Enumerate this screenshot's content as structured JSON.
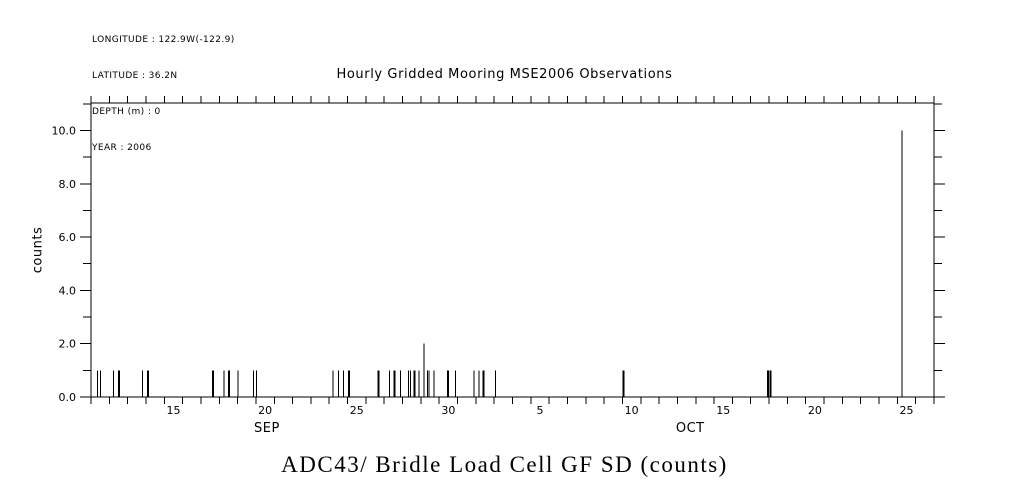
{
  "colors": {
    "fg": "#000000",
    "bg": "#ffffff"
  },
  "header_info": {
    "lines": [
      "LONGITUDE : 122.9W(-122.9)",
      "LATITUDE : 36.2N",
      "DEPTH (m) : 0",
      "YEAR : 2006"
    ]
  },
  "chart_data": {
    "type": "bar",
    "title": "Hourly Gridded Mooring MSE2006 Observations",
    "bottom_title": "ADC43/ Bridle Load Cell GF SD (counts)",
    "ylabel": "counts",
    "ylim": [
      0,
      11.03
    ],
    "y_major_ticks": [
      {
        "value": 0,
        "label": "0.0"
      },
      {
        "value": 2,
        "label": "2.0"
      },
      {
        "value": 4,
        "label": "4.0"
      },
      {
        "value": 6,
        "label": "6.0"
      },
      {
        "value": 8,
        "label": "8.0"
      },
      {
        "value": 10,
        "label": "10.0"
      }
    ],
    "y_minor_tick_step": 1,
    "x_axis": {
      "description": "time axis, one tick per day, spanning Sep 11 through Oct 27",
      "xlim_days": [
        0,
        46
      ],
      "tick_step_days": 1,
      "day_labels": [
        {
          "day": 4,
          "label": "15"
        },
        {
          "day": 9,
          "label": "20"
        },
        {
          "day": 14,
          "label": "25"
        },
        {
          "day": 19,
          "label": "30"
        },
        {
          "day": 24,
          "label": "5"
        },
        {
          "day": 29,
          "label": "10"
        },
        {
          "day": 34,
          "label": "15"
        },
        {
          "day": 39,
          "label": "20"
        },
        {
          "day": 44,
          "label": "25"
        }
      ],
      "month_labels": [
        {
          "label": "SEP",
          "center_day": 9.6
        },
        {
          "label": "OCT",
          "center_day": 32.7
        }
      ]
    },
    "grid": false,
    "legend": null,
    "spikes_note": "hourly count spikes; day measured from Sep 11 00:00; value in counts; w = drawn width px",
    "spikes": [
      {
        "day": 0.35,
        "value": 1,
        "w": 1
      },
      {
        "day": 0.53,
        "value": 1,
        "w": 1
      },
      {
        "day": 1.22,
        "value": 1,
        "w": 1
      },
      {
        "day": 1.52,
        "value": 1,
        "w": 2
      },
      {
        "day": 2.8,
        "value": 1,
        "w": 1
      },
      {
        "day": 3.11,
        "value": 1,
        "w": 2
      },
      {
        "day": 6.66,
        "value": 1,
        "w": 2
      },
      {
        "day": 7.25,
        "value": 1,
        "w": 1
      },
      {
        "day": 7.53,
        "value": 1,
        "w": 2
      },
      {
        "day": 8.03,
        "value": 1,
        "w": 1
      },
      {
        "day": 8.88,
        "value": 1,
        "w": 1
      },
      {
        "day": 9.02,
        "value": 1,
        "w": 1
      },
      {
        "day": 13.21,
        "value": 1,
        "w": 1
      },
      {
        "day": 13.5,
        "value": 1,
        "w": 1
      },
      {
        "day": 13.78,
        "value": 1,
        "w": 1
      },
      {
        "day": 14.07,
        "value": 1,
        "w": 2
      },
      {
        "day": 15.7,
        "value": 1,
        "w": 2
      },
      {
        "day": 16.28,
        "value": 1,
        "w": 1
      },
      {
        "day": 16.57,
        "value": 1,
        "w": 2
      },
      {
        "day": 16.88,
        "value": 1,
        "w": 1
      },
      {
        "day": 17.33,
        "value": 1,
        "w": 1
      },
      {
        "day": 17.44,
        "value": 1,
        "w": 1
      },
      {
        "day": 17.65,
        "value": 1,
        "w": 2
      },
      {
        "day": 17.89,
        "value": 1,
        "w": 1
      },
      {
        "day": 18.16,
        "value": 2,
        "w": 1
      },
      {
        "day": 18.35,
        "value": 1,
        "w": 1
      },
      {
        "day": 18.44,
        "value": 1,
        "w": 1
      },
      {
        "day": 18.71,
        "value": 1,
        "w": 1
      },
      {
        "day": 19.49,
        "value": 1,
        "w": 2
      },
      {
        "day": 19.89,
        "value": 1,
        "w": 1
      },
      {
        "day": 20.89,
        "value": 1,
        "w": 1
      },
      {
        "day": 21.16,
        "value": 1,
        "w": 1
      },
      {
        "day": 21.43,
        "value": 1,
        "w": 2
      },
      {
        "day": 22.07,
        "value": 1,
        "w": 1
      },
      {
        "day": 29.07,
        "value": 1,
        "w": 2
      },
      {
        "day": 36.93,
        "value": 1,
        "w": 2
      },
      {
        "day": 37.09,
        "value": 1,
        "w": 2
      },
      {
        "day": 44.26,
        "value": 10,
        "w": 1
      }
    ]
  }
}
